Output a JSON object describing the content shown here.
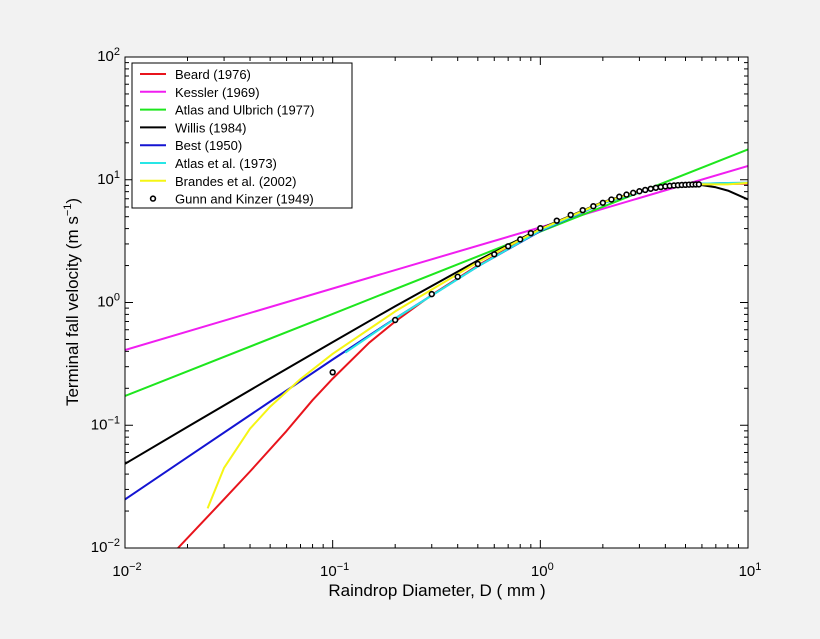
{
  "chart_data": {
    "type": "line",
    "xscale": "log",
    "yscale": "log",
    "xlim": [
      0.01,
      10
    ],
    "ylim": [
      0.01,
      100
    ],
    "xlabel": "Raindrop Diameter, D ( mm )",
    "ylabel_main": "Terminal fall velocity (m s",
    "ylabel_exp": "−1",
    "ylabel_end": ")",
    "grid": false,
    "legend_position": "top-left",
    "xticks": [
      {
        "base": "10",
        "exp": "−2",
        "value": 0.01
      },
      {
        "base": "10",
        "exp": "−1",
        "value": 0.1
      },
      {
        "base": "10",
        "exp": "0",
        "value": 1
      },
      {
        "base": "10",
        "exp": "1",
        "value": 10
      }
    ],
    "yticks": [
      {
        "base": "10",
        "exp": "−2",
        "value": 0.01
      },
      {
        "base": "10",
        "exp": "−1",
        "value": 0.1
      },
      {
        "base": "10",
        "exp": "0",
        "value": 1
      },
      {
        "base": "10",
        "exp": "1",
        "value": 10
      },
      {
        "base": "10",
        "exp": "2",
        "value": 100
      }
    ],
    "series": [
      {
        "name": "Beard (1976)",
        "color": "#e8141c",
        "style": "line",
        "points": [
          [
            0.018,
            0.01
          ],
          [
            0.025,
            0.018
          ],
          [
            0.03,
            0.025
          ],
          [
            0.04,
            0.042
          ],
          [
            0.06,
            0.09
          ],
          [
            0.08,
            0.16
          ],
          [
            0.1,
            0.24
          ],
          [
            0.15,
            0.47
          ],
          [
            0.2,
            0.7
          ],
          [
            0.3,
            1.15
          ],
          [
            0.5,
            2.0
          ],
          [
            1,
            3.9
          ],
          [
            2,
            6.5
          ],
          [
            3,
            8.0
          ],
          [
            4,
            8.8
          ],
          [
            5,
            9.1
          ],
          [
            6,
            9.2
          ],
          [
            10,
            9.3
          ]
        ]
      },
      {
        "name": "Kessler (1969)",
        "color": "#f01ef0",
        "style": "line",
        "points": [
          [
            0.01,
            0.41
          ],
          [
            0.1,
            1.3
          ],
          [
            1,
            4.1
          ],
          [
            10,
            12.97
          ]
        ]
      },
      {
        "name": "Atlas and Ulbrich (1977)",
        "color": "#1ee61e",
        "style": "line",
        "points": [
          [
            0.01,
            0.173
          ],
          [
            0.1,
            0.808
          ],
          [
            1,
            3.78
          ],
          [
            10,
            17.67
          ]
        ]
      },
      {
        "name": "Willis (1984)",
        "color": "#000000",
        "style": "line",
        "points": [
          [
            0.01,
            0.0485
          ],
          [
            0.02,
            0.0969
          ],
          [
            0.05,
            0.241
          ],
          [
            0.1,
            0.476
          ],
          [
            0.2,
            0.933
          ],
          [
            0.5,
            2.2
          ],
          [
            1,
            3.99
          ],
          [
            2,
            6.57
          ],
          [
            3,
            8.11
          ],
          [
            4,
            8.9
          ],
          [
            5,
            9.15
          ],
          [
            6,
            9.04
          ],
          [
            7,
            8.68
          ],
          [
            8,
            8.16
          ],
          [
            10,
            6.91
          ]
        ]
      },
      {
        "name": "Best (1950)",
        "color": "#1414d2",
        "style": "line",
        "points": [
          [
            0.01,
            0.0249
          ],
          [
            0.02,
            0.0549
          ],
          [
            0.05,
            0.156
          ],
          [
            0.1,
            0.343
          ],
          [
            0.2,
            0.742
          ],
          [
            0.5,
            1.97
          ],
          [
            1,
            3.82
          ],
          [
            2,
            6.44
          ],
          [
            3,
            7.92
          ],
          [
            4,
            8.69
          ],
          [
            5,
            9.08
          ],
          [
            6,
            9.27
          ],
          [
            8,
            9.4
          ],
          [
            10,
            9.43
          ]
        ]
      },
      {
        "name": "Atlas et al. (1973)",
        "color": "#28e6e6",
        "style": "line",
        "points": [
          [
            0.115,
            0.39
          ],
          [
            0.2,
            0.74
          ],
          [
            0.5,
            1.97
          ],
          [
            1,
            3.85
          ],
          [
            2,
            6.45
          ],
          [
            3,
            7.95
          ],
          [
            4,
            8.75
          ],
          [
            5,
            9.15
          ],
          [
            6,
            9.3
          ],
          [
            8,
            9.4
          ],
          [
            10,
            9.45
          ]
        ]
      },
      {
        "name": "Brandes et al. (2002)",
        "color": "#f5f514",
        "style": "line",
        "points": [
          [
            0.025,
            0.021
          ],
          [
            0.03,
            0.045
          ],
          [
            0.04,
            0.0937
          ],
          [
            0.05,
            0.142
          ],
          [
            0.07,
            0.238
          ],
          [
            0.1,
            0.382
          ],
          [
            0.2,
            0.847
          ],
          [
            0.5,
            2.135
          ],
          [
            1,
            3.952
          ],
          [
            2,
            6.539
          ],
          [
            3,
            8.049
          ],
          [
            4,
            8.819
          ],
          [
            5,
            9.12
          ],
          [
            6,
            9.187
          ],
          [
            7,
            9.16
          ],
          [
            8,
            9.17
          ],
          [
            10,
            9.43
          ]
        ]
      },
      {
        "name": "Gunn and Kinzer (1949)",
        "color": "#000000",
        "style": "marker",
        "points": [
          [
            0.1,
            0.27
          ],
          [
            0.2,
            0.72
          ],
          [
            0.3,
            1.17
          ],
          [
            0.4,
            1.62
          ],
          [
            0.5,
            2.06
          ],
          [
            0.6,
            2.47
          ],
          [
            0.7,
            2.87
          ],
          [
            0.8,
            3.27
          ],
          [
            0.9,
            3.67
          ],
          [
            1.0,
            4.03
          ],
          [
            1.2,
            4.64
          ],
          [
            1.4,
            5.17
          ],
          [
            1.6,
            5.65
          ],
          [
            1.8,
            6.09
          ],
          [
            2.0,
            6.49
          ],
          [
            2.2,
            6.9
          ],
          [
            2.4,
            7.27
          ],
          [
            2.6,
            7.57
          ],
          [
            2.8,
            7.82
          ],
          [
            3.0,
            8.06
          ],
          [
            3.2,
            8.26
          ],
          [
            3.4,
            8.44
          ],
          [
            3.6,
            8.6
          ],
          [
            3.8,
            8.72
          ],
          [
            4.0,
            8.83
          ],
          [
            4.2,
            8.92
          ],
          [
            4.4,
            8.98
          ],
          [
            4.6,
            9.03
          ],
          [
            4.8,
            9.07
          ],
          [
            5.0,
            9.09
          ],
          [
            5.2,
            9.12
          ],
          [
            5.4,
            9.14
          ],
          [
            5.6,
            9.16
          ],
          [
            5.8,
            9.17
          ]
        ]
      }
    ]
  }
}
